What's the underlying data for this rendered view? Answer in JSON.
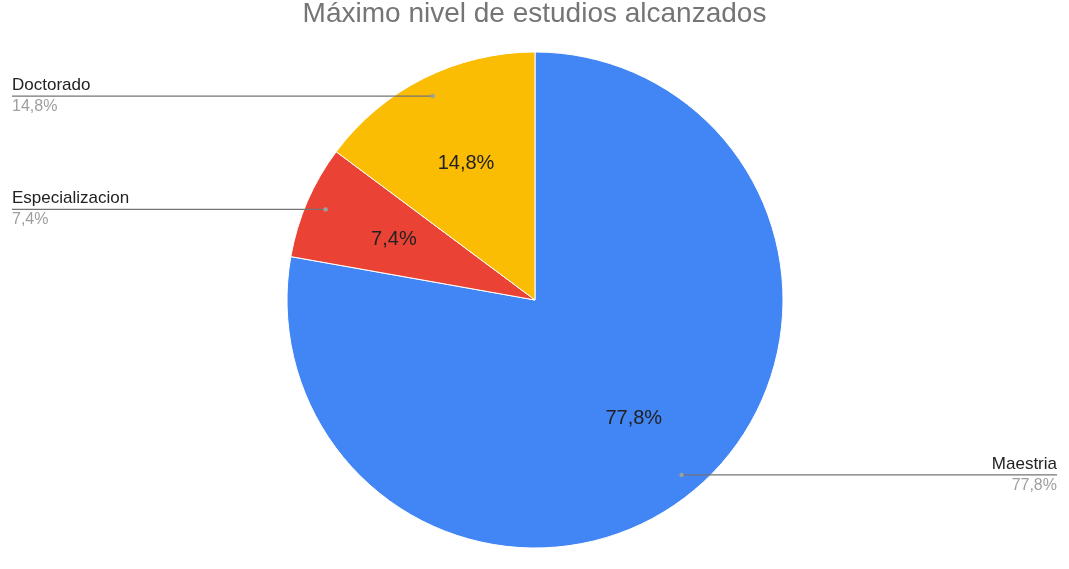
{
  "chart_data": {
    "type": "pie",
    "title": "Máximo nivel de estudios alcanzados",
    "categories": [
      "Maestria",
      "Especializacion",
      "Doctorado"
    ],
    "values": [
      77.8,
      7.4,
      14.8
    ],
    "colors": [
      "#4285f4",
      "#ea4335",
      "#fbbc04"
    ],
    "value_labels": [
      "77,8%",
      "7,4%",
      "14,8%"
    ]
  }
}
